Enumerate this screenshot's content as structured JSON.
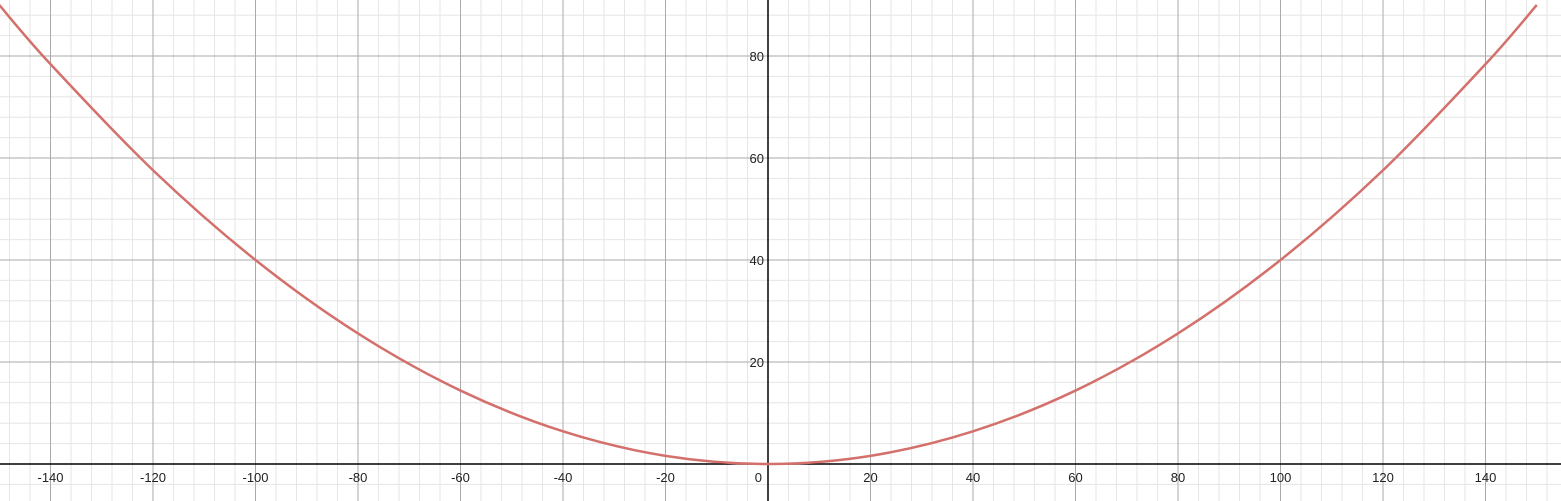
{
  "chart_data": {
    "type": "line",
    "title": "",
    "xlabel": "",
    "ylabel": "",
    "xlim": [
      -150,
      153
    ],
    "ylim": [
      -7,
      91
    ],
    "grid": true,
    "x_ticks": [
      -140,
      -120,
      -100,
      -80,
      -60,
      -40,
      -20,
      0,
      20,
      40,
      60,
      80,
      100,
      120,
      140
    ],
    "x_tick_labels": [
      "-140",
      "-120",
      "-100",
      "-80",
      "-60",
      "-40",
      "-20",
      "0",
      "20",
      "40",
      "60",
      "80",
      "100",
      "120",
      "140"
    ],
    "y_ticks": [
      20,
      40,
      60,
      80
    ],
    "y_tick_labels": [
      "20",
      "40",
      "60",
      "80"
    ],
    "series": [
      {
        "color": "#d4706c",
        "x": [
          -150,
          -140,
          -120,
          -100,
          -80,
          -60,
          -40,
          -20,
          0,
          20,
          40,
          60,
          80,
          100,
          120,
          140,
          150
        ],
        "y": [
          90,
          78.4,
          57.6,
          40,
          25.6,
          14.4,
          6.4,
          1.6,
          0,
          1.6,
          6.4,
          14.4,
          25.6,
          40,
          57.6,
          78.4,
          90
        ]
      }
    ]
  },
  "colors": {
    "background": "#ffffff",
    "major_grid": "#aaaaaa",
    "minor_grid": "#e6e6e6",
    "axis": "#000000",
    "curve": "#d4706c"
  }
}
